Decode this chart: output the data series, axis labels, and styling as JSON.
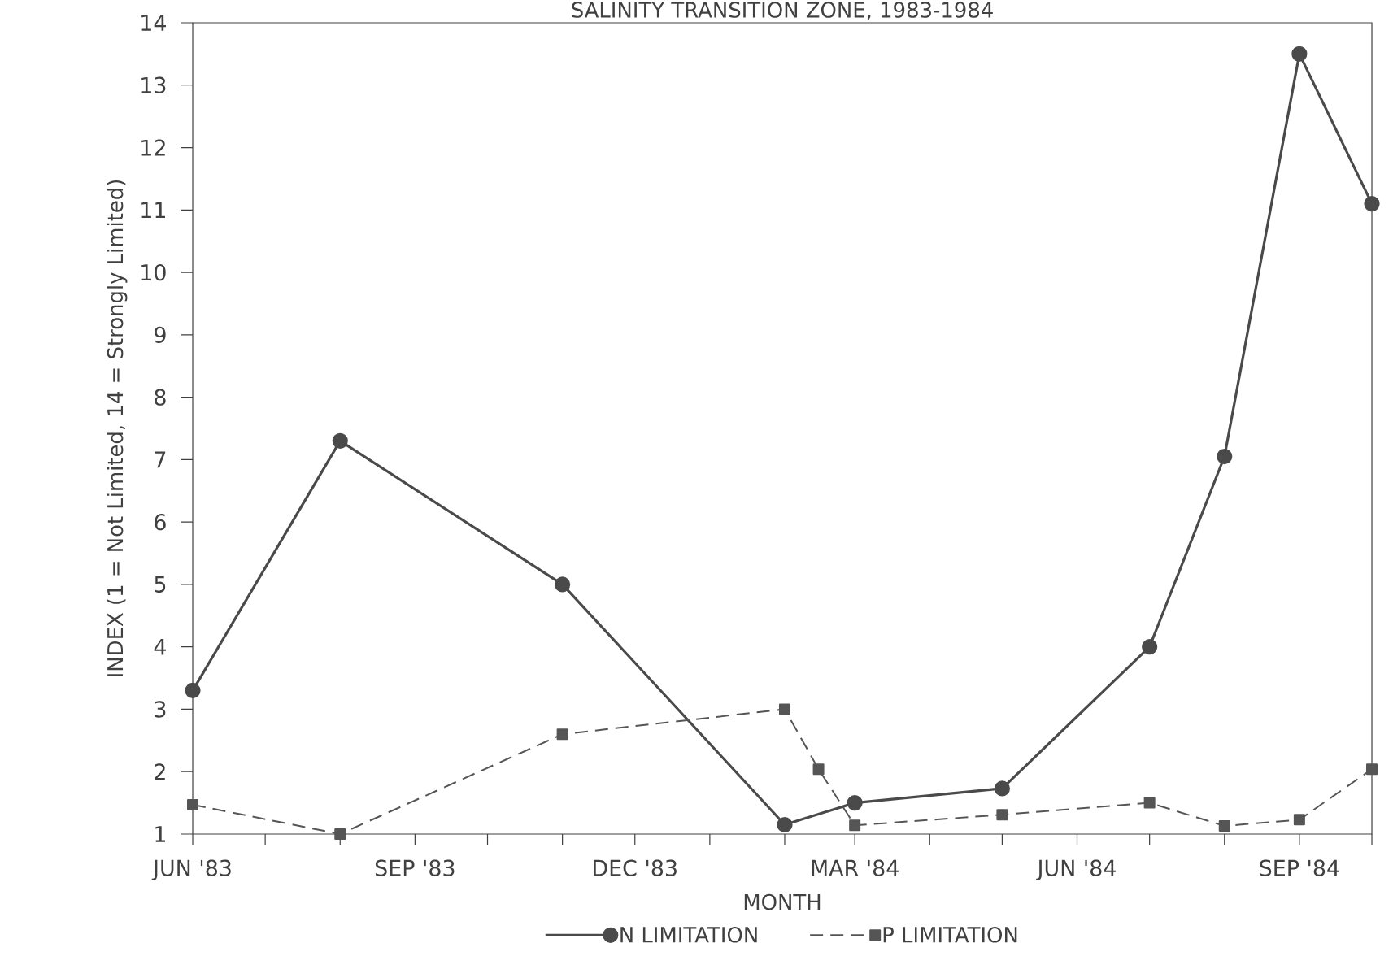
{
  "chart_data": {
    "type": "line",
    "title": "SALINITY TRANSITION ZONE, 1983-1984",
    "xlabel": "MONTH",
    "ylabel": "INDEX (1 = Not Limited, 14 = Strongly Limited)",
    "xlim": [
      "1983-06",
      "1984-10"
    ],
    "ylim": [
      1,
      14
    ],
    "xticks": [
      {
        "value": "1983-06",
        "label": "JUN '83"
      },
      {
        "value": "1983-07",
        "label": null
      },
      {
        "value": "1983-08",
        "label": null
      },
      {
        "value": "1983-09",
        "label": "SEP '83"
      },
      {
        "value": "1983-10",
        "label": null
      },
      {
        "value": "1983-11",
        "label": null
      },
      {
        "value": "1983-12",
        "label": "DEC '83"
      },
      {
        "value": "1984-01",
        "label": null
      },
      {
        "value": "1984-02",
        "label": null
      },
      {
        "value": "1984-03",
        "label": "MAR '84"
      },
      {
        "value": "1984-04",
        "label": null
      },
      {
        "value": "1984-05",
        "label": null
      },
      {
        "value": "1984-06",
        "label": "JUN '84"
      },
      {
        "value": "1984-07",
        "label": null
      },
      {
        "value": "1984-08",
        "label": null
      },
      {
        "value": "1984-09",
        "label": "SEP '84"
      },
      {
        "value": "1984-10",
        "label": null
      }
    ],
    "yticks": [
      1,
      2,
      3,
      4,
      5,
      6,
      7,
      8,
      9,
      10,
      11,
      12,
      13,
      14
    ],
    "legend": "bottom",
    "grid": false,
    "series": [
      {
        "name": "N LIMITATION",
        "color": "#4a4a4a",
        "marker": "circle",
        "line_style": "solid",
        "x": [
          "1983-06",
          "1983-08",
          "1983-11",
          "1984-02",
          "1984-03",
          "1984-05",
          "1984-07",
          "1984-08",
          "1984-09",
          "1984-10"
        ],
        "values": [
          3.3,
          7.3,
          5.0,
          1.15,
          1.5,
          1.73,
          4.0,
          7.05,
          13.5,
          11.1
        ]
      },
      {
        "name": "P LIMITATION",
        "color": "#555555",
        "marker": "square",
        "line_style": "dashed",
        "x": [
          "1983-06",
          "1983-08",
          "1983-11",
          "1984-02",
          "1984-02-15",
          "1984-03",
          "1984-05",
          "1984-07",
          "1984-08",
          "1984-09",
          "1984-10"
        ],
        "values": [
          1.47,
          1.0,
          2.6,
          3.0,
          2.04,
          1.14,
          1.31,
          1.5,
          1.13,
          1.23,
          2.04
        ]
      }
    ]
  }
}
